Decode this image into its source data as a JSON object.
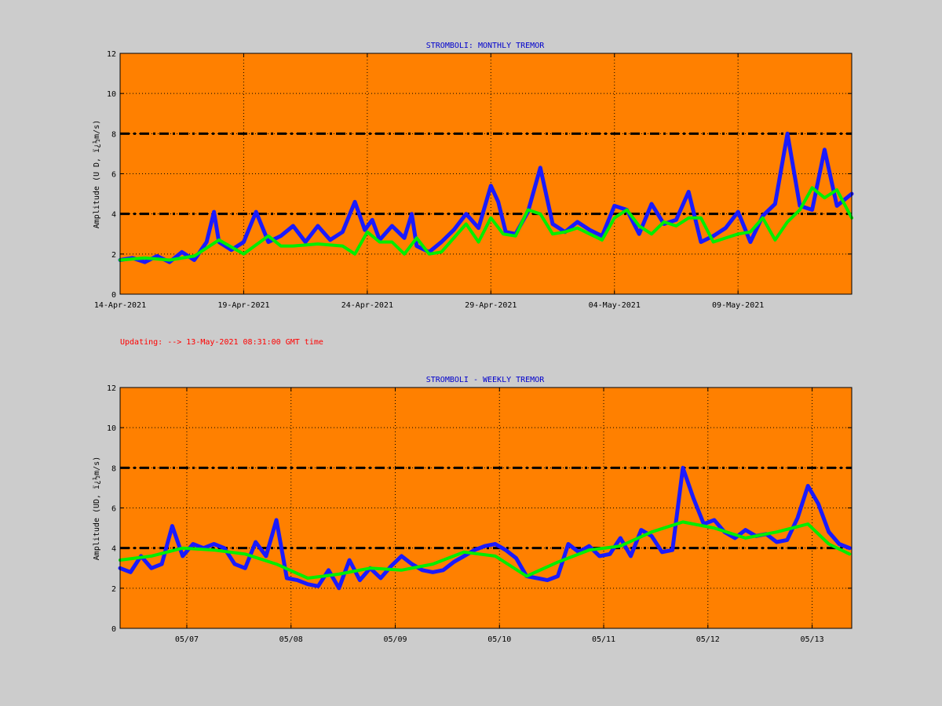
{
  "colors": {
    "background": "#cccccc",
    "plot_bg": "#ff8000",
    "raw": "#1a1aff",
    "smooth": "#00ee00",
    "title": "#0000cc",
    "status": "#ff0000",
    "threshold": "#000000"
  },
  "status_text": "Updating:  -->  13-May-2021 08:31:00 GMT time",
  "chart_data": [
    {
      "type": "line",
      "title": "STROMBOLI: MONTHLY TREMOR",
      "ylabel": "Amplitude   (U D,  ï¿½m/s)",
      "xlim": [
        0,
        29.6
      ],
      "ylim": [
        0,
        12
      ],
      "yticks": [
        "0",
        "2",
        "4",
        "6",
        "8",
        "10",
        "12"
      ],
      "xticks": [
        {
          "x": 0,
          "label": "14-Apr-2021"
        },
        {
          "x": 5,
          "label": "19-Apr-2021"
        },
        {
          "x": 10,
          "label": "24-Apr-2021"
        },
        {
          "x": 15,
          "label": "29-Apr-2021"
        },
        {
          "x": 20,
          "label": "04-May-2021"
        },
        {
          "x": 25,
          "label": "09-May-2021"
        }
      ],
      "thresholds": [
        4,
        8
      ],
      "grid": true,
      "series": [
        {
          "x": [
            0,
            0.5,
            1,
            1.5,
            2,
            2.5,
            3,
            3.5,
            3.8,
            4,
            4.5,
            5,
            5.5,
            5.8,
            6,
            6.5,
            7,
            7.5,
            8,
            8.5,
            9,
            9.5,
            9.9,
            10.2,
            10.5,
            11,
            11.5,
            11.8,
            12,
            12.5,
            13,
            13.5,
            14,
            14.5,
            15,
            15.3,
            15.6,
            16,
            16.5,
            17,
            17.5,
            18,
            18.5,
            19,
            19.5,
            20,
            20.5,
            21,
            21.5,
            22,
            22.5,
            23,
            23.5,
            24,
            24.5,
            25,
            25.5,
            26,
            26.5,
            27,
            27.5,
            28,
            28.5,
            29,
            29.6
          ],
          "values": [
            1.7,
            1.8,
            1.6,
            1.9,
            1.6,
            2.1,
            1.7,
            2.6,
            4.1,
            2.6,
            2.2,
            2.6,
            4.1,
            3.2,
            2.6,
            2.9,
            3.4,
            2.6,
            3.4,
            2.7,
            3.1,
            4.6,
            3.2,
            3.7,
            2.7,
            3.4,
            2.8,
            4.0,
            2.4,
            2.1,
            2.6,
            3.2,
            4.0,
            3.3,
            5.4,
            4.6,
            3.1,
            3.0,
            4.1,
            6.3,
            3.5,
            3.1,
            3.6,
            3.2,
            2.9,
            4.4,
            4.2,
            3.0,
            4.5,
            3.5,
            3.7,
            5.1,
            2.6,
            2.9,
            3.3,
            4.1,
            2.6,
            3.9,
            4.5,
            8.0,
            4.4,
            4.2,
            7.2,
            4.4,
            5.0
          ]
        },
        {
          "x": [
            0,
            1,
            2,
            3,
            4,
            5,
            6,
            6.5,
            7,
            8,
            9,
            9.5,
            10,
            10.5,
            11,
            11.5,
            12,
            12.5,
            13,
            14,
            14.5,
            15,
            15.5,
            16,
            16.5,
            17,
            17.5,
            18,
            18.5,
            19,
            19.5,
            20,
            20.5,
            21,
            21.5,
            22,
            22.5,
            23,
            23.5,
            24,
            24.5,
            25,
            25.5,
            26,
            26.5,
            27,
            27.5,
            28,
            28.5,
            29,
            29.6
          ],
          "values": [
            1.7,
            1.8,
            1.7,
            1.9,
            2.7,
            2.0,
            2.9,
            2.4,
            2.4,
            2.5,
            2.4,
            2.0,
            3.1,
            2.6,
            2.6,
            2.0,
            2.8,
            2.0,
            2.1,
            3.5,
            2.6,
            3.8,
            3.0,
            2.9,
            4.2,
            4.0,
            3.0,
            3.1,
            3.3,
            3.0,
            2.7,
            3.8,
            4.2,
            3.4,
            3.0,
            3.6,
            3.4,
            3.8,
            3.8,
            2.6,
            2.8,
            3.0,
            3.1,
            3.8,
            2.7,
            3.6,
            4.2,
            5.3,
            4.8,
            5.2,
            3.8
          ]
        }
      ]
    },
    {
      "type": "line",
      "title": "STROMBOLI - WEEKLY TREMOR",
      "ylabel": "Amplitude (UD, ï¿½m/s)",
      "xlim": [
        0,
        7.02
      ],
      "ylim": [
        0,
        12
      ],
      "yticks": [
        "0",
        "2",
        "4",
        "6",
        "8",
        "10",
        "12"
      ],
      "xticks": [
        {
          "x": 0.64,
          "label": "05/07"
        },
        {
          "x": 1.64,
          "label": "05/08"
        },
        {
          "x": 2.64,
          "label": "05/09"
        },
        {
          "x": 3.64,
          "label": "05/10"
        },
        {
          "x": 4.64,
          "label": "05/11"
        },
        {
          "x": 5.64,
          "label": "05/12"
        },
        {
          "x": 6.64,
          "label": "05/13"
        }
      ],
      "thresholds": [
        4,
        8
      ],
      "grid": true,
      "series": [
        {
          "x": [
            0,
            0.1,
            0.2,
            0.3,
            0.4,
            0.5,
            0.6,
            0.7,
            0.8,
            0.9,
            1.0,
            1.1,
            1.2,
            1.3,
            1.4,
            1.5,
            1.6,
            1.7,
            1.8,
            1.9,
            2.0,
            2.1,
            2.2,
            2.3,
            2.4,
            2.5,
            2.6,
            2.7,
            2.8,
            2.9,
            3.0,
            3.1,
            3.2,
            3.3,
            3.4,
            3.5,
            3.6,
            3.7,
            3.8,
            3.9,
            4.0,
            4.1,
            4.2,
            4.3,
            4.4,
            4.5,
            4.6,
            4.7,
            4.8,
            4.9,
            5.0,
            5.1,
            5.2,
            5.3,
            5.4,
            5.5,
            5.6,
            5.7,
            5.8,
            5.9,
            6.0,
            6.1,
            6.2,
            6.3,
            6.4,
            6.5,
            6.6,
            6.7,
            6.8,
            6.9,
            7.0
          ],
          "values": [
            3.0,
            2.8,
            3.6,
            3.0,
            3.2,
            5.1,
            3.6,
            4.2,
            4.0,
            4.2,
            4.0,
            3.2,
            3.0,
            4.3,
            3.6,
            5.4,
            2.5,
            2.4,
            2.2,
            2.1,
            2.9,
            2.0,
            3.4,
            2.4,
            3.0,
            2.5,
            3.1,
            3.6,
            3.2,
            2.9,
            2.8,
            2.9,
            3.3,
            3.6,
            3.9,
            4.1,
            4.2,
            3.9,
            3.5,
            2.6,
            2.5,
            2.4,
            2.6,
            4.2,
            3.8,
            4.1,
            3.6,
            3.7,
            4.5,
            3.6,
            4.9,
            4.6,
            3.8,
            3.9,
            8.0,
            6.5,
            5.2,
            5.4,
            4.8,
            4.5,
            4.9,
            4.6,
            4.7,
            4.3,
            4.4,
            5.5,
            7.1,
            6.2,
            4.8,
            4.2,
            4.0
          ]
        },
        {
          "x": [
            0,
            0.3,
            0.6,
            0.9,
            1.2,
            1.5,
            1.8,
            2.1,
            2.4,
            2.7,
            3.0,
            3.3,
            3.6,
            3.9,
            4.2,
            4.5,
            4.8,
            5.1,
            5.4,
            5.7,
            6.0,
            6.3,
            6.6,
            6.8,
            7.0
          ],
          "values": [
            3.4,
            3.6,
            4.0,
            3.9,
            3.7,
            3.2,
            2.5,
            2.7,
            3.0,
            2.9,
            3.2,
            3.8,
            3.6,
            2.6,
            3.3,
            3.9,
            4.1,
            4.8,
            5.3,
            5.0,
            4.5,
            4.8,
            5.2,
            4.2,
            3.7
          ]
        }
      ]
    }
  ]
}
